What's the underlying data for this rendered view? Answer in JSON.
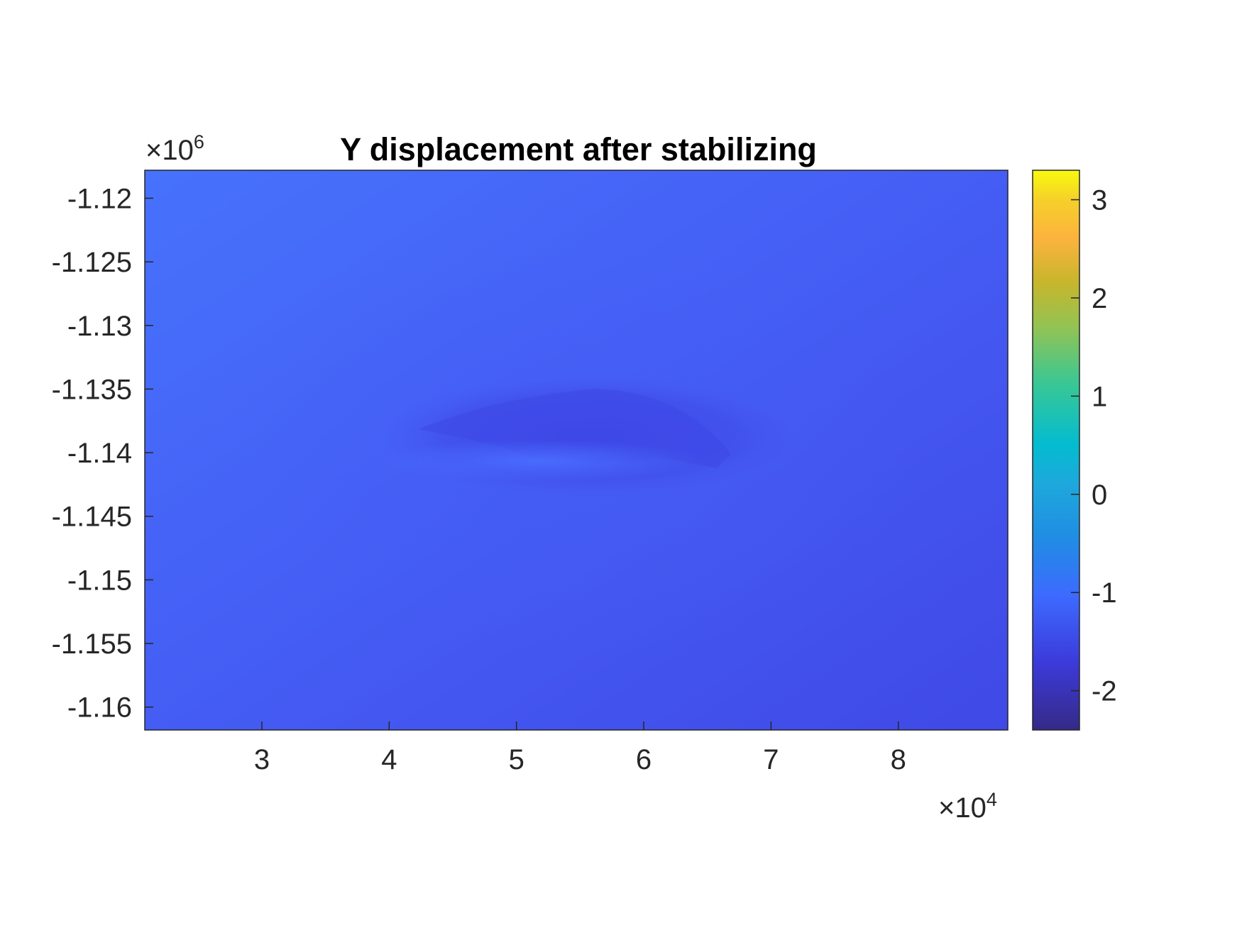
{
  "chart_data": {
    "type": "heatmap",
    "title": "Y displacement after stabilizing",
    "xlabel": "",
    "ylabel": "",
    "x_ticks": [
      3,
      4,
      5,
      6,
      7,
      8
    ],
    "x_tick_labels": [
      "3",
      "4",
      "5",
      "6",
      "7",
      "8"
    ],
    "x_multiplier": {
      "base": "10",
      "exponent": "4"
    },
    "xlim": [
      2.08,
      8.86
    ],
    "y_ticks": [
      -1.12,
      -1.125,
      -1.13,
      -1.135,
      -1.14,
      -1.145,
      -1.15,
      -1.155,
      -1.16
    ],
    "y_tick_labels": [
      "-1.12",
      "-1.125",
      "-1.13",
      "-1.135",
      "-1.14",
      "-1.145",
      "-1.15",
      "-1.155",
      "-1.16"
    ],
    "y_multiplier": {
      "base": "10",
      "exponent": "6"
    },
    "ylim": [
      -1.1618,
      -1.1178
    ],
    "colorbar": {
      "colormap": "parula",
      "ticks": [
        3,
        2,
        1,
        0,
        -1,
        -2
      ],
      "tick_labels": [
        "3",
        "2",
        "1",
        "0",
        "-1",
        "-2"
      ],
      "clim": [
        -2.4,
        3.3
      ]
    },
    "field": {
      "background_value": -1.55,
      "top_left_value": -1.15,
      "bottom_right_value": -1.8,
      "features": [
        {
          "kind": "depression",
          "x_range": [
            4.3,
            6.8
          ],
          "y_center": -1.1375,
          "value": -1.85
        },
        {
          "kind": "ridge",
          "x_range": [
            4.3,
            6.6
          ],
          "y_center": -1.1405,
          "value": -1.3
        }
      ]
    },
    "colors": {
      "axis": "#262626",
      "background": "#ffffff"
    }
  }
}
